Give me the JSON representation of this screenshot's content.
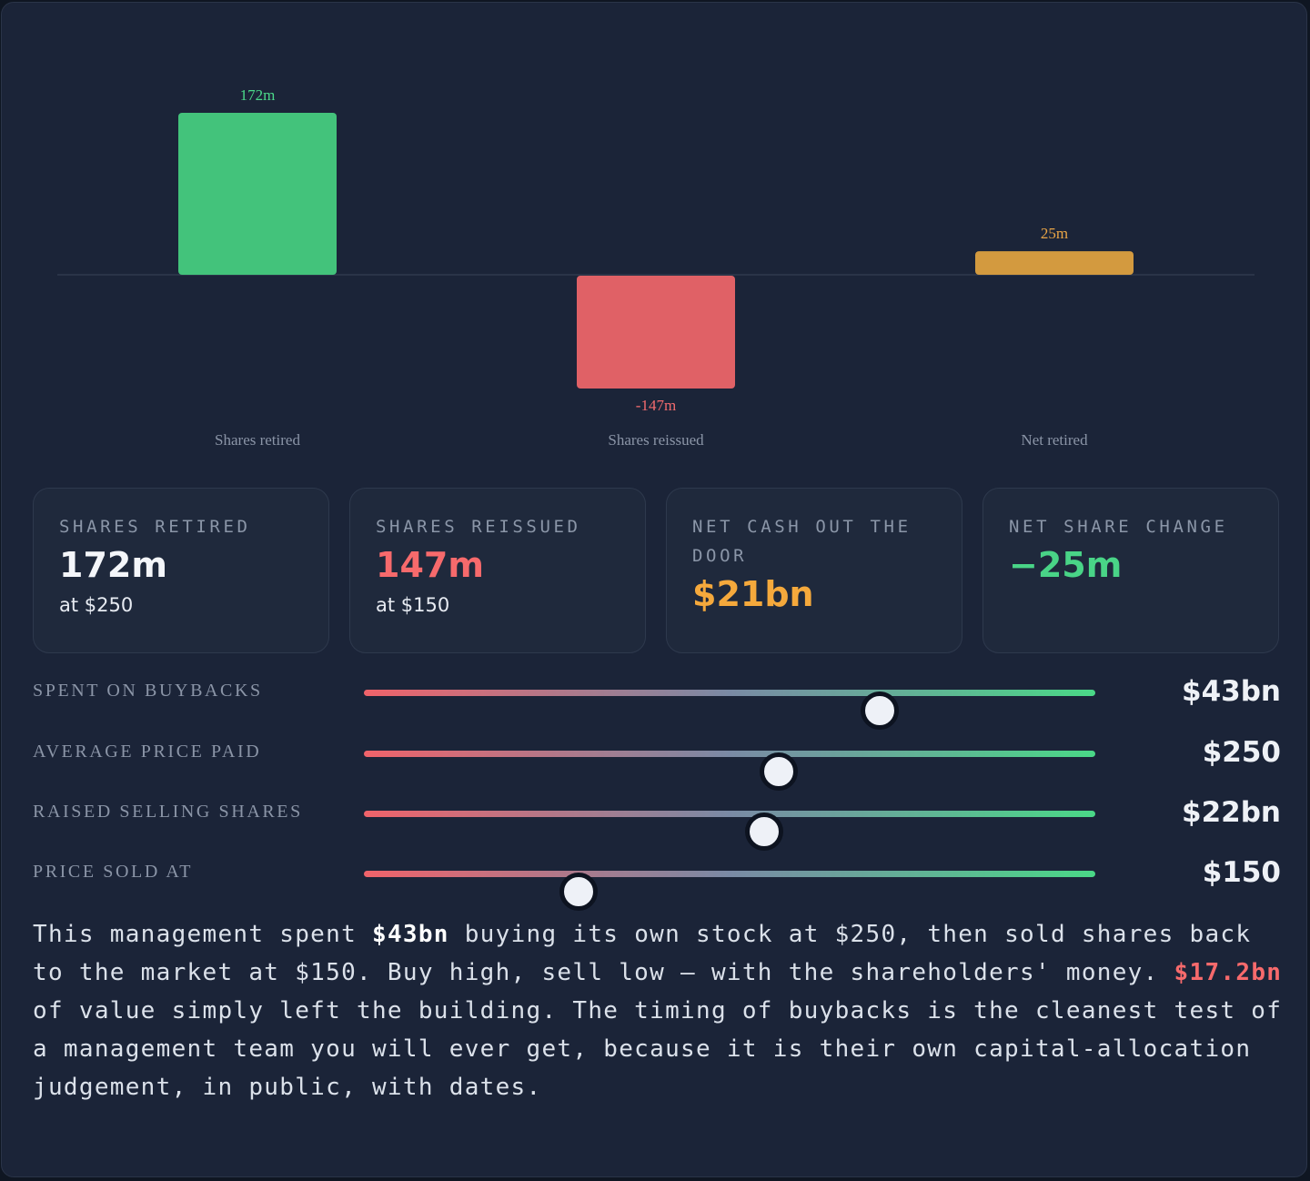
{
  "chart_data": {
    "type": "bar",
    "categories": [
      "Shares retired",
      "Shares reissued",
      "Net retired"
    ],
    "values": [
      172,
      -147,
      25
    ],
    "data_labels": [
      "172m",
      "-147m",
      "25m"
    ],
    "colors": [
      "#43c37b",
      "#e06166",
      "#d39a3f"
    ],
    "label_colors": [
      "#4bd98a",
      "#f36b6e",
      "#e9a546"
    ],
    "unit": "m",
    "ylim": [
      -147,
      172
    ],
    "grid": false,
    "title": "",
    "xlabel": "",
    "ylabel": ""
  },
  "cards": [
    {
      "label": "SHARES RETIRED",
      "value": "172m",
      "sub": "at $250",
      "value_color": "#f4f6fa"
    },
    {
      "label": "SHARES REISSUED",
      "value": "147m",
      "sub": "at $150",
      "value_color": "#f76a6c"
    },
    {
      "label": "NET CASH OUT THE DOOR",
      "value": "$21bn",
      "sub": "",
      "value_color": "#f5a93c"
    },
    {
      "label": "NET SHARE CHANGE",
      "value": "−25m",
      "sub": "",
      "value_color": "#49d487"
    }
  ],
  "sliders": [
    {
      "label": "SPENT ON BUYBACKS",
      "value": "$43bn",
      "fraction": 0.705
    },
    {
      "label": "AVERAGE PRICE PAID",
      "value": "$250",
      "fraction": 0.567
    },
    {
      "label": "RAISED SELLING SHARES",
      "value": "$22bn",
      "fraction": 0.547
    },
    {
      "label": "PRICE SOLD AT",
      "value": "$150",
      "fraction": 0.294
    }
  ],
  "paragraph": {
    "p1": "This management spent ",
    "b1": "$43bn",
    "p2": " buying its own stock at $250, then sold shares back to the market at $150. Buy high, sell low — with the shareholders' money. ",
    "b2": "$17.2bn",
    "p3": " of value simply left the building. The timing of buybacks is the cleanest test of a management team you will ever get, because it is their own capital-allocation judgement, in public, with dates."
  },
  "colors": {
    "background": "#1b2438",
    "card_bg": "#1f293c",
    "slider_low": "#f0636a",
    "slider_mid": "#7a8aa5",
    "slider_high": "#4ad887"
  }
}
